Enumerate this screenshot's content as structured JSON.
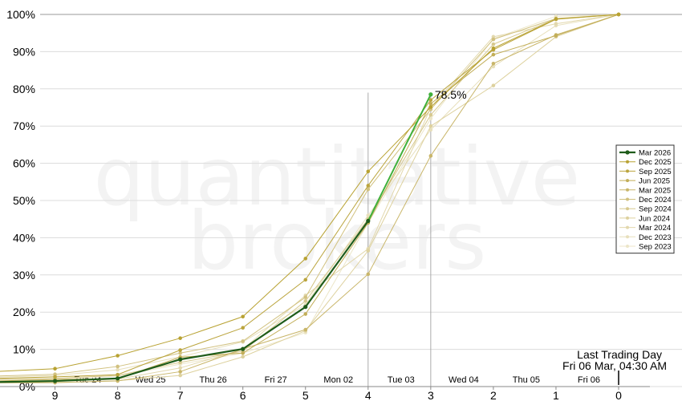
{
  "watermark": {
    "line1": "quantitative",
    "line2": "brokers"
  },
  "chart_data": {
    "type": "line",
    "x": [
      10,
      9,
      8,
      7,
      6,
      5,
      4,
      3,
      2,
      1,
      0
    ],
    "xlim": [
      10,
      0
    ],
    "ylim": [
      0,
      100
    ],
    "ytick_labels": [
      "0%",
      "10%",
      "20%",
      "30%",
      "40%",
      "50%",
      "60%",
      "70%",
      "80%",
      "90%",
      "100%"
    ],
    "xtick_labels": [
      "9",
      "8",
      "7",
      "6",
      "5",
      "4",
      "3",
      "2",
      "1",
      "0"
    ],
    "day_labels": [
      "Tue 24",
      "Wed 25",
      "Thu 26",
      "Fri 27",
      "Mon 02",
      "Tue 03",
      "Wed 04",
      "Thu 05",
      "Fri 06"
    ],
    "grid": true,
    "legend_position": "right",
    "annotation_last_label": "78.5%",
    "last_trading_day": {
      "title": "Last Trading Day",
      "date": "Fri 06 Mar, 04:30 AM"
    },
    "series": [
      {
        "name": "Mar 2026",
        "color": "#1f5c1a",
        "current": true,
        "values": [
          1.2,
          1.5,
          2.2,
          7.3,
          10.1,
          21.4,
          44.5,
          78.5,
          null,
          null,
          null
        ]
      },
      {
        "name": "Dec 2025",
        "color": "#b8a232",
        "values": [
          4.0,
          4.8,
          8.3,
          13.0,
          18.8,
          34.4,
          57.8,
          75.1,
          90.9,
          98.8,
          100
        ]
      },
      {
        "name": "Sep 2025",
        "color": "#bba53e",
        "values": [
          2.2,
          2.6,
          3.2,
          9.8,
          15.8,
          28.7,
          54.0,
          77.0,
          90.5,
          98.7,
          100
        ]
      },
      {
        "name": "Jun 2025",
        "color": "#c2ae58",
        "values": [
          1.5,
          1.9,
          2.1,
          7.9,
          9.0,
          19.5,
          44.0,
          76.0,
          89.2,
          94.3,
          100
        ]
      },
      {
        "name": "Mar 2025",
        "color": "#c9b66a",
        "values": [
          1.0,
          1.1,
          1.5,
          4.0,
          10.1,
          15.3,
          30.2,
          62.0,
          86.8,
          94.5,
          100
        ]
      },
      {
        "name": "Dec 2024",
        "color": "#d1c17f",
        "values": [
          2.8,
          3.3,
          5.4,
          9.0,
          12.2,
          24.0,
          53.0,
          74.5,
          93.3,
          98.9,
          100
        ]
      },
      {
        "name": "Sep 2024",
        "color": "#d7c98f",
        "values": [
          2.0,
          2.2,
          3.0,
          6.5,
          9.5,
          23.0,
          45.0,
          73.0,
          92.0,
          98.8,
          100
        ]
      },
      {
        "name": "Jun 2024",
        "color": "#ddd19e",
        "values": [
          1.0,
          1.0,
          1.6,
          3.0,
          8.0,
          15.0,
          36.5,
          70.0,
          80.9,
          94.0,
          100
        ]
      },
      {
        "name": "Mar 2024",
        "color": "#e2d8ad",
        "values": [
          1.3,
          1.4,
          2.0,
          5.0,
          10.0,
          24.5,
          37.0,
          75.0,
          94.0,
          97.5,
          100
        ]
      },
      {
        "name": "Dec 2023",
        "color": "#e7dfbb",
        "values": [
          2.5,
          3.0,
          4.5,
          8.0,
          12.0,
          22.0,
          46.0,
          69.0,
          86.0,
          97.0,
          100
        ]
      },
      {
        "name": "Sep 2023",
        "color": "#ece6c8",
        "values": [
          1.8,
          2.0,
          2.8,
          6.0,
          9.0,
          14.5,
          44.0,
          72.0,
          93.5,
          99.5,
          100
        ]
      }
    ]
  }
}
